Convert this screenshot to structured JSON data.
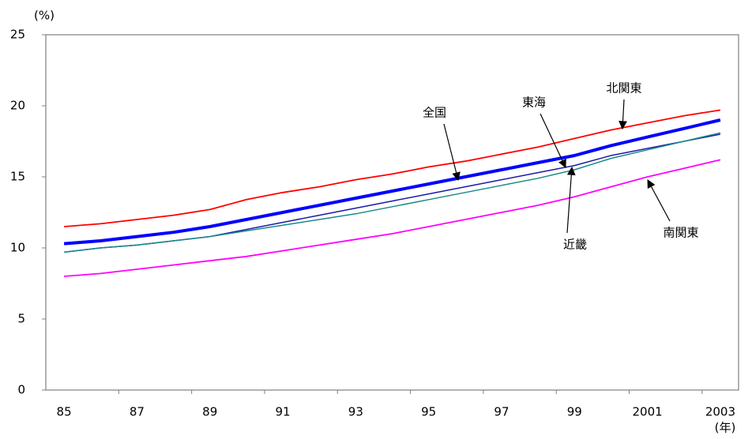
{
  "chart_data": {
    "type": "line",
    "y_label": "(%)",
    "x_label": "(年)",
    "categories": [
      "85",
      null,
      "87",
      null,
      "89",
      null,
      "91",
      null,
      "93",
      null,
      "95",
      null,
      "97",
      null,
      "99",
      null,
      "2001",
      null,
      "2003"
    ],
    "ylim": [
      0,
      25
    ],
    "yticks": [
      0,
      5,
      10,
      15,
      20,
      25
    ],
    "grid": false,
    "series": [
      {
        "name": "北関東",
        "color": "#ff0000",
        "line_width": 1.8,
        "values": [
          11.5,
          11.7,
          12.0,
          12.3,
          12.7,
          13.4,
          13.9,
          14.3,
          14.8,
          15.2,
          15.7,
          16.1,
          16.6,
          17.1,
          17.7,
          18.3,
          18.8,
          19.3,
          19.7
        ]
      },
      {
        "name": "全国",
        "color": "#0000ff",
        "line_width": 4,
        "values": [
          10.3,
          10.5,
          10.8,
          11.1,
          11.5,
          12.0,
          12.5,
          13.0,
          13.5,
          14.0,
          14.5,
          15.0,
          15.5,
          16.0,
          16.5,
          17.2,
          17.8,
          18.4,
          19.0
        ]
      },
      {
        "name": "東海",
        "color": "#1c1ca8",
        "line_width": 1.5,
        "values": [
          9.7,
          10.0,
          10.2,
          10.5,
          10.8,
          11.3,
          11.8,
          12.3,
          12.8,
          13.3,
          13.8,
          14.3,
          14.8,
          15.3,
          15.8,
          16.5,
          17.0,
          17.5,
          18.0
        ]
      },
      {
        "name": "近畿",
        "color": "#1a8a8a",
        "line_width": 1.5,
        "values": [
          9.7,
          10.0,
          10.2,
          10.5,
          10.8,
          11.2,
          11.6,
          12.0,
          12.4,
          12.9,
          13.4,
          13.9,
          14.4,
          14.9,
          15.5,
          16.3,
          16.9,
          17.5,
          18.1
        ]
      },
      {
        "name": "南関東",
        "color": "#ff00ff",
        "line_width": 1.8,
        "values": [
          8.0,
          8.2,
          8.5,
          8.8,
          9.1,
          9.4,
          9.8,
          10.2,
          10.6,
          11.0,
          11.5,
          12.0,
          12.5,
          13.0,
          13.6,
          14.3,
          15.0,
          15.6,
          16.2
        ]
      }
    ]
  }
}
